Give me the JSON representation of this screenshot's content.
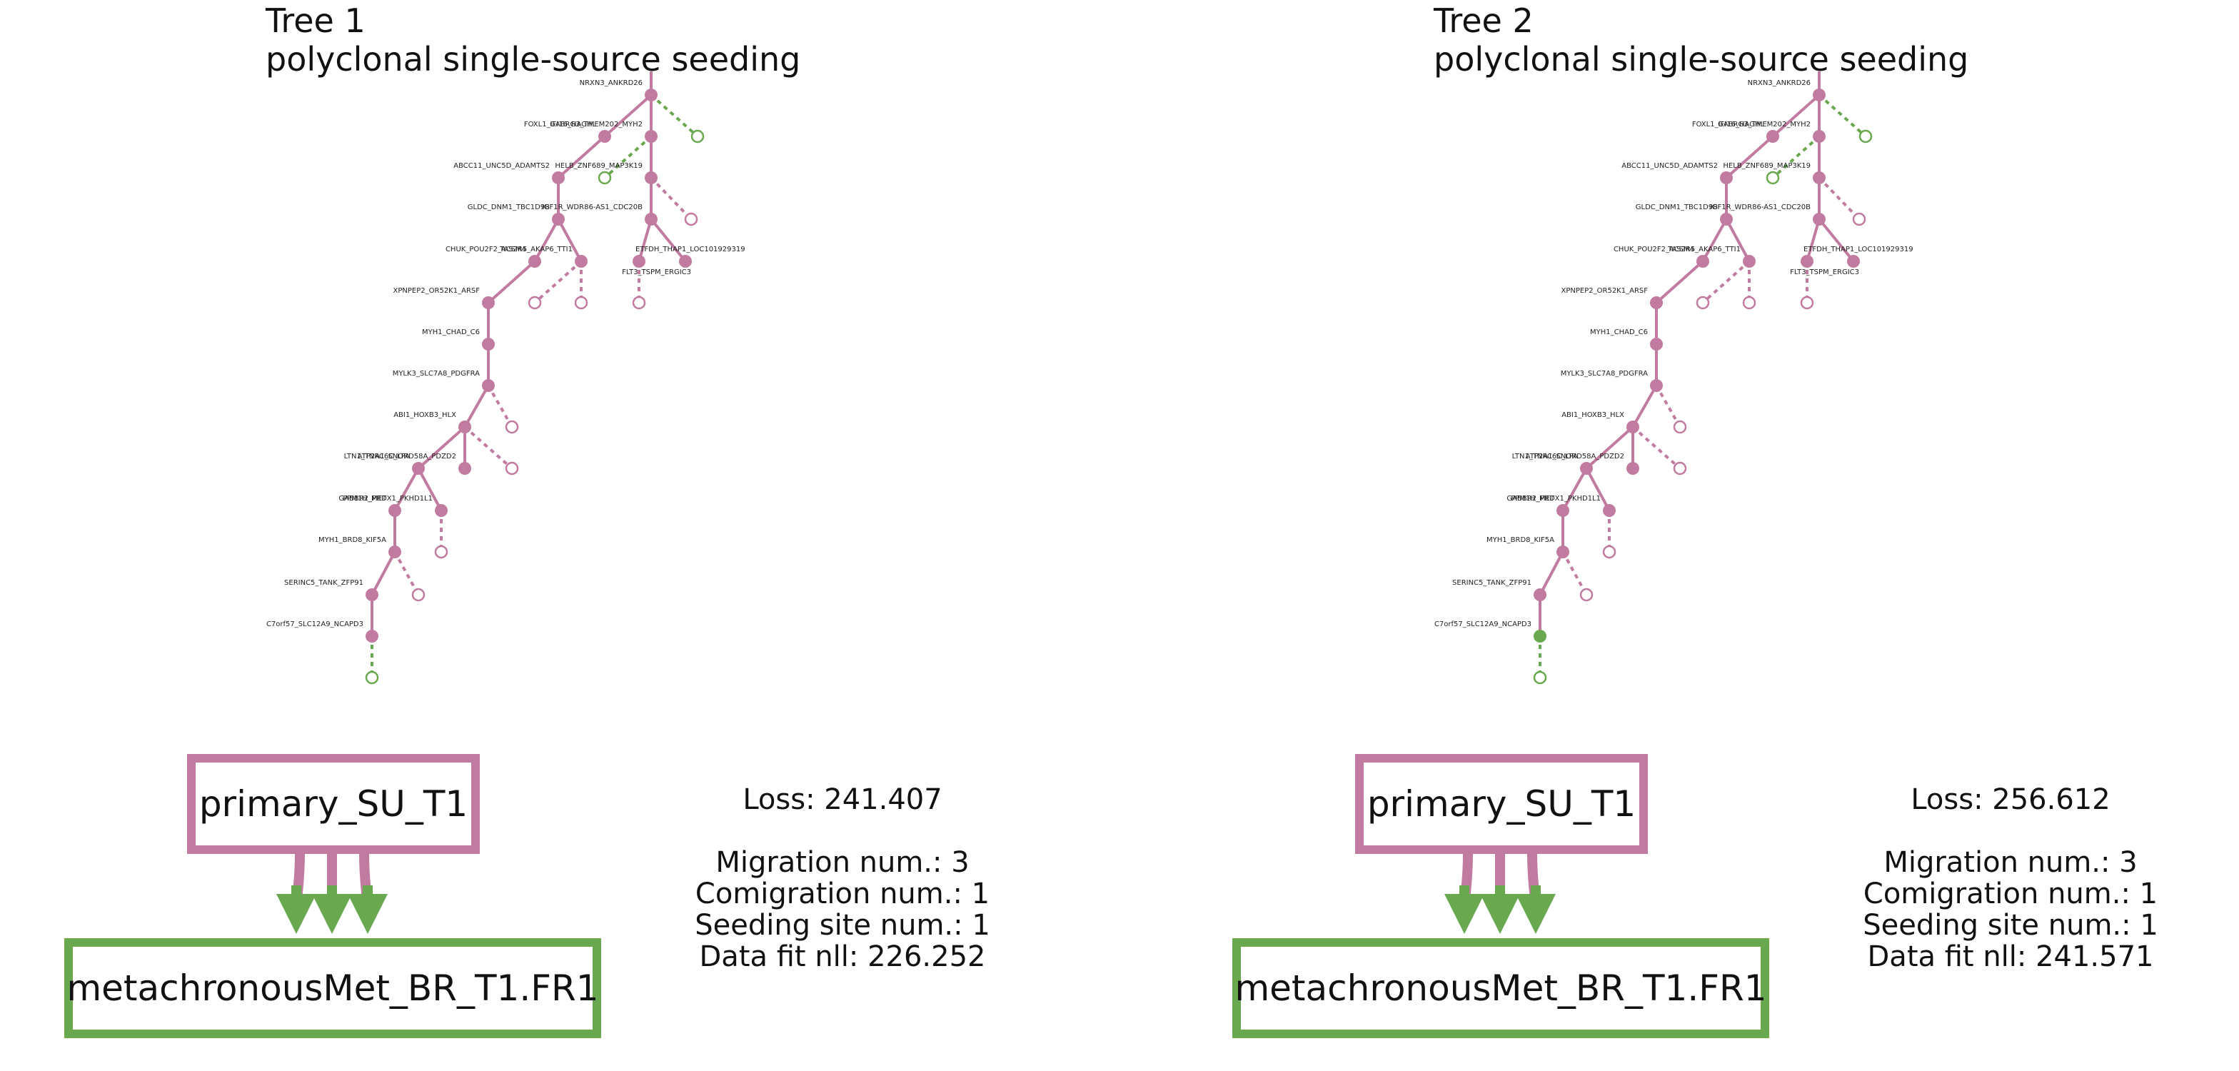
{
  "colors": {
    "primary": "#c27ba0",
    "metastasis": "#6aa84f"
  },
  "panels": [
    {
      "title": "Tree 1",
      "subtitle": "polyclonal single-source seeding",
      "primary_label": "primary_SU_T1",
      "met_label": "metachronousMet_BR_T1.FR1",
      "loss": "Loss: 241.407",
      "migration": "Migration num.: 3",
      "comigration": "Comigration num.: 1",
      "seeding": "Seeding site num.: 1",
      "datafit": "Data fit nll: 226.252",
      "node7_color": "#c27ba0"
    },
    {
      "title": "Tree 2",
      "subtitle": "polyclonal single-source seeding",
      "primary_label": "primary_SU_T1",
      "met_label": "metachronousMet_BR_T1.FR1",
      "loss": "Loss: 256.612",
      "migration": "Migration num.: 3",
      "comigration": "Comigration num.: 1",
      "seeding": "Seeding site num.: 1",
      "datafit": "Data fit nll: 241.571",
      "node7_color": "#6aa84f"
    }
  ],
  "tree_labels": [
    "NRXN3_ANKRD26",
    "FOXL1_IFI16_HAGHL",
    "GABRG3_TMEM202_MYH2",
    "ABCC11_UNC5D_ADAMTS2",
    "HELB_ZNF689_MAP3K19",
    "GLDC_DNM1_TBC1D9B",
    "IGF1R_WDR86-AS1_CDC20B",
    "CHUK_POU2F2_ACSM4",
    "TAS2R5_AKAP6_TTI1",
    "ETFDH_THAP1_LOC101929319",
    "FLT3_TSPM_ERGIC3",
    "XPNPEP2_OR52K1_ARSF",
    "MYH1_CHAD_C6",
    "MYLK3_SLC7A8_PDGFRA",
    "ABI1_HOXB3_HLX",
    "LTN1_TNRC6C_LPA",
    "ATP2A1_SNORD58A_PDZD2",
    "PPM1H_MET",
    "GABBR2_PRDX1_PKHD1L1",
    "MYH1_BRD8_KIF5A",
    "SERINC5_TANK_ZFP91",
    "C7orf57_SLC12A9_NCAPD3"
  ]
}
